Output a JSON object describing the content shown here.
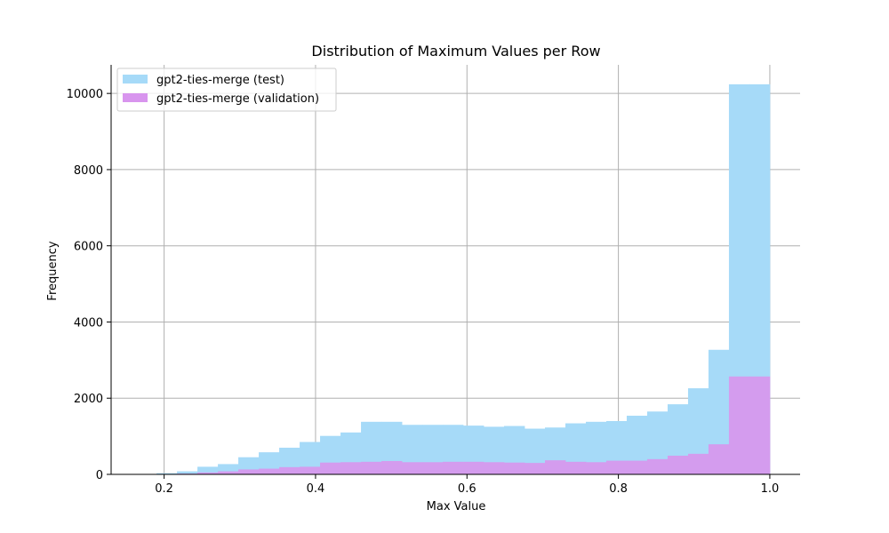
{
  "chart_data": {
    "type": "bar",
    "title": "Distribution of Maximum Values per Row",
    "xlabel": "Max Value",
    "ylabel": "Frequency",
    "xlim": [
      0.13,
      1.04
    ],
    "ylim": [
      0,
      10750
    ],
    "xticks": [
      0.2,
      0.4,
      0.6,
      0.8,
      1.0
    ],
    "xtick_labels": [
      "0.2",
      "0.4",
      "0.6",
      "0.8",
      "1.0"
    ],
    "yticks": [
      0,
      2000,
      4000,
      6000,
      8000,
      10000
    ],
    "ytick_labels": [
      "0",
      "2000",
      "4000",
      "6000",
      "8000",
      "10000"
    ],
    "grid": true,
    "legend_position": "top-left",
    "bin_edges": [
      0.19,
      0.217,
      0.244,
      0.271,
      0.298,
      0.325,
      0.352,
      0.379,
      0.406,
      0.433,
      0.46,
      0.487,
      0.514,
      0.541,
      0.568,
      0.595,
      0.622,
      0.649,
      0.676,
      0.703,
      0.73,
      0.757,
      0.784,
      0.811,
      0.838,
      0.865,
      0.892,
      0.919,
      0.946,
      0.973,
      1.0
    ],
    "series": [
      {
        "name": "gpt2-ties-merge (test)",
        "color": "#a6daf8",
        "values": [
          30,
          80,
          200,
          270,
          450,
          580,
          700,
          850,
          1010,
          1100,
          1380,
          1380,
          1300,
          1300,
          1300,
          1280,
          1250,
          1270,
          1200,
          1230,
          1340,
          1380,
          1400,
          1540,
          1650,
          1840,
          2260,
          3270,
          10240,
          10240
        ]
      },
      {
        "name": "gpt2-ties-merge (validation)",
        "color": "#d895ee",
        "values": [
          10,
          20,
          50,
          80,
          130,
          150,
          190,
          200,
          310,
          320,
          330,
          350,
          320,
          320,
          330,
          330,
          320,
          310,
          300,
          370,
          330,
          320,
          360,
          360,
          400,
          490,
          540,
          790,
          2570,
          2570
        ]
      }
    ],
    "overlap_color": "#d49cee"
  }
}
